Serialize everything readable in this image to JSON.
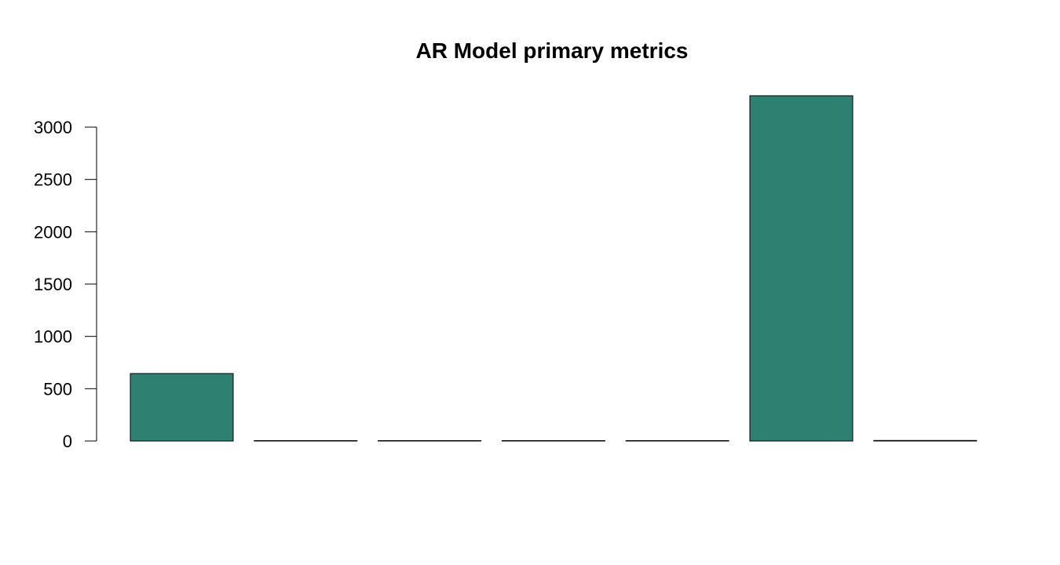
{
  "chart_data": {
    "type": "bar",
    "title": "AR Model primary metrics",
    "xlabel": "",
    "ylabel": "",
    "categories": [
      "",
      "",
      "",
      "",
      "",
      "",
      ""
    ],
    "values": [
      645,
      0.5,
      0.5,
      0.5,
      0.5,
      3300,
      5
    ],
    "ylim": [
      0,
      3300
    ],
    "yticks": [
      0,
      500,
      1000,
      1500,
      2000,
      2500,
      3000
    ],
    "grid": false,
    "legend": "none",
    "bar_color": "#2E8070",
    "bar_edge_color": "#000000"
  }
}
